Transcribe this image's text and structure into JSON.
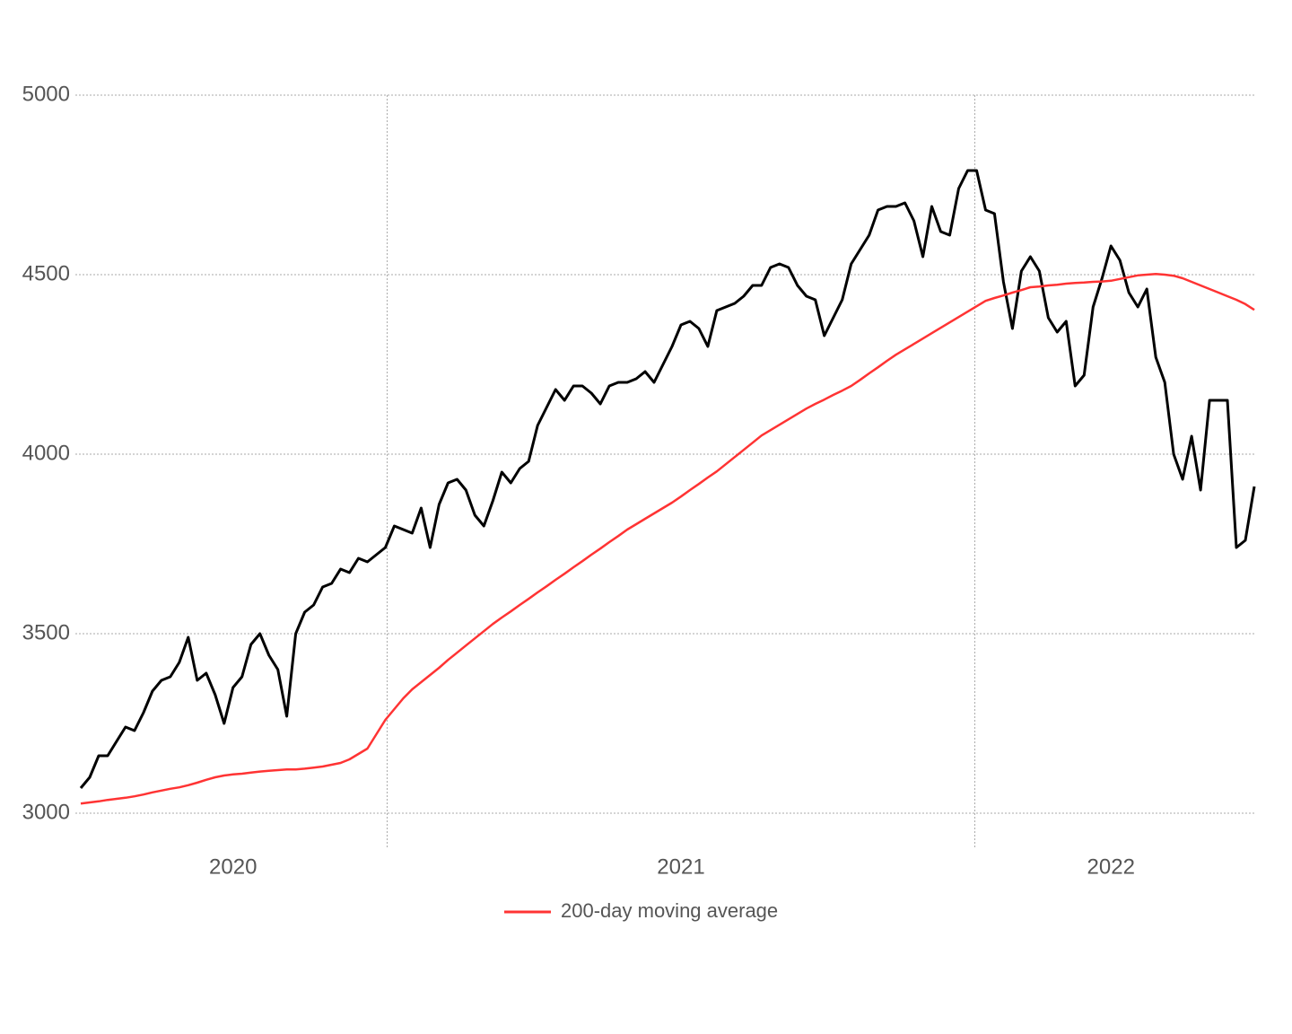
{
  "chart_data": {
    "type": "line",
    "categories": [
      null,
      null,
      null,
      null,
      null,
      null,
      null,
      null,
      null,
      null,
      null,
      null,
      null,
      null,
      null,
      null,
      null,
      "2020",
      null,
      null,
      null,
      null,
      null,
      null,
      null,
      null,
      null,
      null,
      null,
      null,
      null,
      null,
      null,
      null,
      null,
      null,
      null,
      null,
      null,
      null,
      null,
      null,
      null,
      null,
      null,
      null,
      null,
      null,
      null,
      null,
      null,
      null,
      null,
      null,
      null,
      null,
      null,
      null,
      null,
      null,
      null,
      null,
      null,
      null,
      null,
      null,
      null,
      "2021",
      null,
      null,
      null,
      null,
      null,
      null,
      null,
      null,
      null,
      null,
      null,
      null,
      null,
      null,
      null,
      null,
      null,
      null,
      null,
      null,
      null,
      null,
      null,
      null,
      null,
      null,
      null,
      null,
      null,
      null,
      null,
      null,
      null,
      null,
      null,
      null,
      null,
      null,
      null,
      null,
      null,
      null,
      null,
      null,
      null,
      null,
      null,
      "2022",
      null,
      null,
      null,
      null,
      null,
      null,
      null,
      null,
      null,
      null,
      null,
      null,
      null,
      null,
      null,
      null
    ],
    "series": [
      {
        "color": "#000000",
        "values": [
          3070,
          3100,
          3160,
          3160,
          3200,
          3240,
          3230,
          3280,
          3340,
          3370,
          3380,
          3420,
          3490,
          3370,
          3390,
          3330,
          3250,
          3350,
          3380,
          3470,
          3500,
          3440,
          3400,
          3270,
          3500,
          3560,
          3580,
          3630,
          3640,
          3680,
          3670,
          3710,
          3700,
          3720,
          3740,
          3800,
          3790,
          3780,
          3850,
          3740,
          3860,
          3920,
          3930,
          3900,
          3830,
          3800,
          3870,
          3950,
          3920,
          3960,
          3980,
          4080,
          4130,
          4180,
          4150,
          4190,
          4190,
          4170,
          4140,
          4190,
          4200,
          4200,
          4210,
          4230,
          4200,
          4250,
          4300,
          4360,
          4370,
          4350,
          4300,
          4400,
          4410,
          4420,
          4440,
          4470,
          4470,
          4520,
          4530,
          4520,
          4470,
          4440,
          4430,
          4330,
          4380,
          4430,
          4530,
          4570,
          4610,
          4680,
          4690,
          4690,
          4700,
          4650,
          4550,
          4690,
          4620,
          4610,
          4740,
          4790,
          4790,
          4680,
          4670,
          4480,
          4350,
          4510,
          4550,
          4510,
          4380,
          4340,
          4370,
          4190,
          4220,
          4410,
          4490,
          4580,
          4540,
          4450,
          4410,
          4460,
          4270,
          4200,
          4000,
          3930,
          4050,
          3900,
          4150,
          4150,
          4150,
          3740,
          3760,
          3910
        ]
      },
      {
        "name": "200-day moving average",
        "color": "#ff3333",
        "values": [
          3027,
          3030,
          3033,
          3037,
          3040,
          3043,
          3047,
          3052,
          3058,
          3063,
          3068,
          3072,
          3078,
          3085,
          3093,
          3100,
          3105,
          3108,
          3110,
          3113,
          3116,
          3118,
          3120,
          3122,
          3122,
          3124,
          3127,
          3130,
          3135,
          3140,
          3150,
          3165,
          3180,
          3220,
          3260,
          3290,
          3320,
          3345,
          3365,
          3385,
          3405,
          3427,
          3447,
          3467,
          3487,
          3507,
          3527,
          3545,
          3562,
          3580,
          3597,
          3615,
          3632,
          3650,
          3667,
          3685,
          3702,
          3720,
          3737,
          3755,
          3772,
          3790,
          3805,
          3820,
          3835,
          3850,
          3865,
          3882,
          3900,
          3917,
          3935,
          3952,
          3972,
          3992,
          4012,
          4032,
          4052,
          4067,
          4082,
          4097,
          4112,
          4127,
          4140,
          4152,
          4165,
          4177,
          4190,
          4207,
          4225,
          4242,
          4260,
          4277,
          4292,
          4307,
          4322,
          4337,
          4352,
          4367,
          4382,
          4397,
          4412,
          4427,
          4435,
          4442,
          4450,
          4457,
          4465,
          4467,
          4470,
          4472,
          4475,
          4477,
          4478,
          4480,
          4481,
          4483,
          4488,
          4493,
          4498,
          4500,
          4502,
          4500,
          4497,
          4490,
          4480,
          4470,
          4460,
          4450,
          4440,
          4430,
          4418,
          4402
        ]
      }
    ],
    "ylim": [
      3000,
      5000
    ],
    "yticks": [
      3000,
      3500,
      4000,
      4500,
      5000
    ],
    "x_grid_lines": [
      34.2,
      99.8
    ],
    "grid": true,
    "legend": "bottom"
  }
}
